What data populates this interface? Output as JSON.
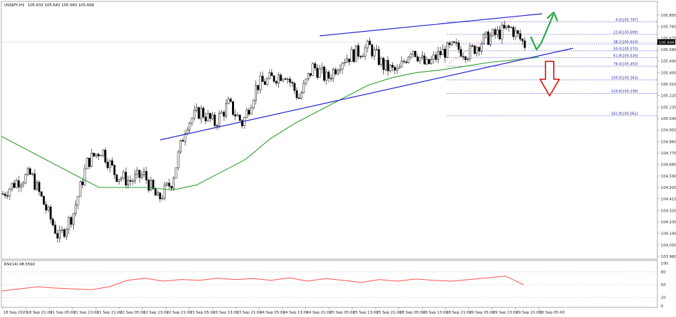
{
  "header": {
    "symbol": "USDJPY,H1",
    "ohlc": "105.633 105.642 105.583 105.606"
  },
  "rsi": {
    "label": "RSI(14) 48.5592",
    "levels": [
      "100",
      "80",
      "50",
      "20",
      "0"
    ],
    "line_color": "#ff4d4d"
  },
  "current_price": "105.606",
  "colors": {
    "ma": "#2e9c2e",
    "channel": "#2020d0",
    "fib": "#3a3acc",
    "up_arrow": "#22aa44",
    "down_arrow": "#dd2222",
    "price_tag": "#000000"
  },
  "fib_levels": [
    {
      "label": "0.0(105.797)",
      "price": 105.797
    },
    {
      "label": "23.6(105.699)",
      "price": 105.699
    },
    {
      "label": "38.2(105.624)",
      "price": 105.624
    },
    {
      "label": "50.0(105.570)",
      "price": 105.57
    },
    {
      "label": "61.8(105.516)",
      "price": 105.516
    },
    {
      "label": "76.4(105.450)",
      "price": 105.45
    },
    {
      "label": "100.0(105.343)",
      "price": 105.343
    },
    {
      "label": "123.6(105.236)",
      "price": 105.236
    },
    {
      "label": "161.8(105.062)",
      "price": 105.062
    }
  ],
  "chart_data": {
    "type": "candlestick",
    "title": "USDJPY,H1",
    "ylim": [
      103.96,
      105.85
    ],
    "y_ticks": [
      "105.850",
      "105.760",
      "105.670",
      "105.580",
      "105.490",
      "105.400",
      "105.310",
      "105.220",
      "105.130",
      "105.040",
      "104.950",
      "104.860",
      "104.770",
      "104.680",
      "104.590",
      "104.500",
      "104.410",
      "104.320",
      "104.230",
      "104.140",
      "104.050",
      "103.960"
    ],
    "x_ticks": [
      "18 Sep 2020",
      "18 Sep 21:00",
      "21 Sep 05:00",
      "21 Sep 13:00",
      "21 Sep 21:00",
      "22 Sep 05:00",
      "22 Sep 13:00",
      "22 Sep 21:00",
      "23 Sep 05:00",
      "23 Sep 13:00",
      "23 Sep 21:00",
      "24 Sep 05:00",
      "24 Sep 13:00",
      "24 Sep 21:00",
      "25 Sep 05:00",
      "25 Sep 13:00",
      "25 Sep 21:00",
      "28 Sep 05:00",
      "28 Sep 13:00",
      "28 Sep 21:00",
      "29 Sep 05:00",
      "29 Sep 13:00",
      "29 Sep 21:00",
      "30 Sep 05:00"
    ],
    "series_anchor_close": [
      104.45,
      104.55,
      104.6,
      104.35,
      104.1,
      104.3,
      104.7,
      104.8,
      104.6,
      104.55,
      104.6,
      104.4,
      104.55,
      105.0,
      105.1,
      105.0,
      105.15,
      105.0,
      105.3,
      105.35,
      105.4,
      105.2,
      105.45,
      105.35,
      105.5,
      105.55,
      105.6,
      105.45,
      105.4,
      105.6,
      105.45,
      105.55,
      105.6,
      105.55,
      105.65,
      105.7,
      105.75,
      105.62
    ],
    "ma_close": [
      104.9,
      104.8,
      104.7,
      104.6,
      104.5,
      104.5,
      104.5,
      104.48,
      104.52,
      104.62,
      104.72,
      104.88,
      105.0,
      105.1,
      105.2,
      105.3,
      105.36,
      105.4,
      105.42,
      105.45,
      105.48,
      105.5,
      105.52
    ],
    "rsi_values": [
      35,
      40,
      45,
      42,
      40,
      38,
      45,
      60,
      65,
      58,
      62,
      60,
      65,
      62,
      64,
      60,
      66,
      58,
      64,
      60,
      55,
      62,
      58,
      63,
      60,
      58,
      62,
      66,
      70,
      50
    ],
    "channel": {
      "upper": [
        [
          105.75,
          0.47
        ],
        [
          105.8,
          0.84
        ]
      ],
      "lower": [
        [
          104.89,
          0.24
        ],
        [
          105.53,
          0.85
        ]
      ]
    }
  }
}
